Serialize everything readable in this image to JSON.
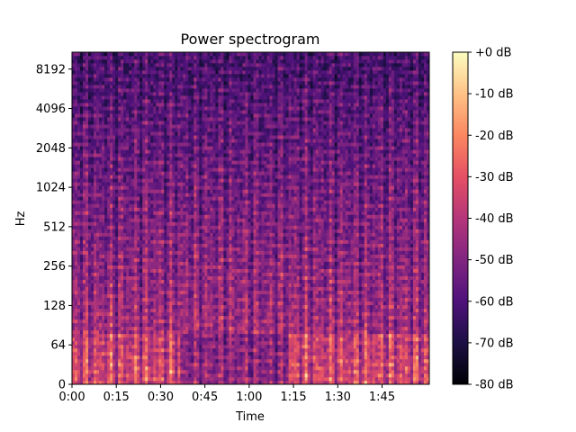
{
  "chart_data": {
    "type": "heatmap",
    "title": "Power spectrogram",
    "xlabel": "Time",
    "ylabel": "Hz",
    "x_ticks": [
      "0:00",
      "0:15",
      "0:30",
      "0:45",
      "1:00",
      "1:15",
      "1:30",
      "1:45"
    ],
    "x_tick_seconds": [
      0,
      15,
      30,
      45,
      60,
      75,
      90,
      105
    ],
    "x_range_seconds": [
      0,
      121
    ],
    "y_ticks": [
      "0",
      "64",
      "128",
      "256",
      "512",
      "1024",
      "2048",
      "4096",
      "8192"
    ],
    "y_tick_hz": [
      0,
      64,
      128,
      256,
      512,
      1024,
      2048,
      4096,
      8192
    ],
    "y_scale": "log (symlog below 64 Hz)",
    "y_range_hz": [
      0,
      11025
    ],
    "colorbar": {
      "colormap": "magma",
      "range_db": [
        -80,
        0
      ],
      "tick_labels": [
        "+0 dB",
        "-10 dB",
        "-20 dB",
        "-30 dB",
        "-40 dB",
        "-50 dB",
        "-60 dB",
        "-70 dB",
        "-80 dB"
      ],
      "tick_values": [
        0,
        -10,
        -20,
        -30,
        -40,
        -50,
        -60,
        -70,
        -80
      ]
    }
  }
}
